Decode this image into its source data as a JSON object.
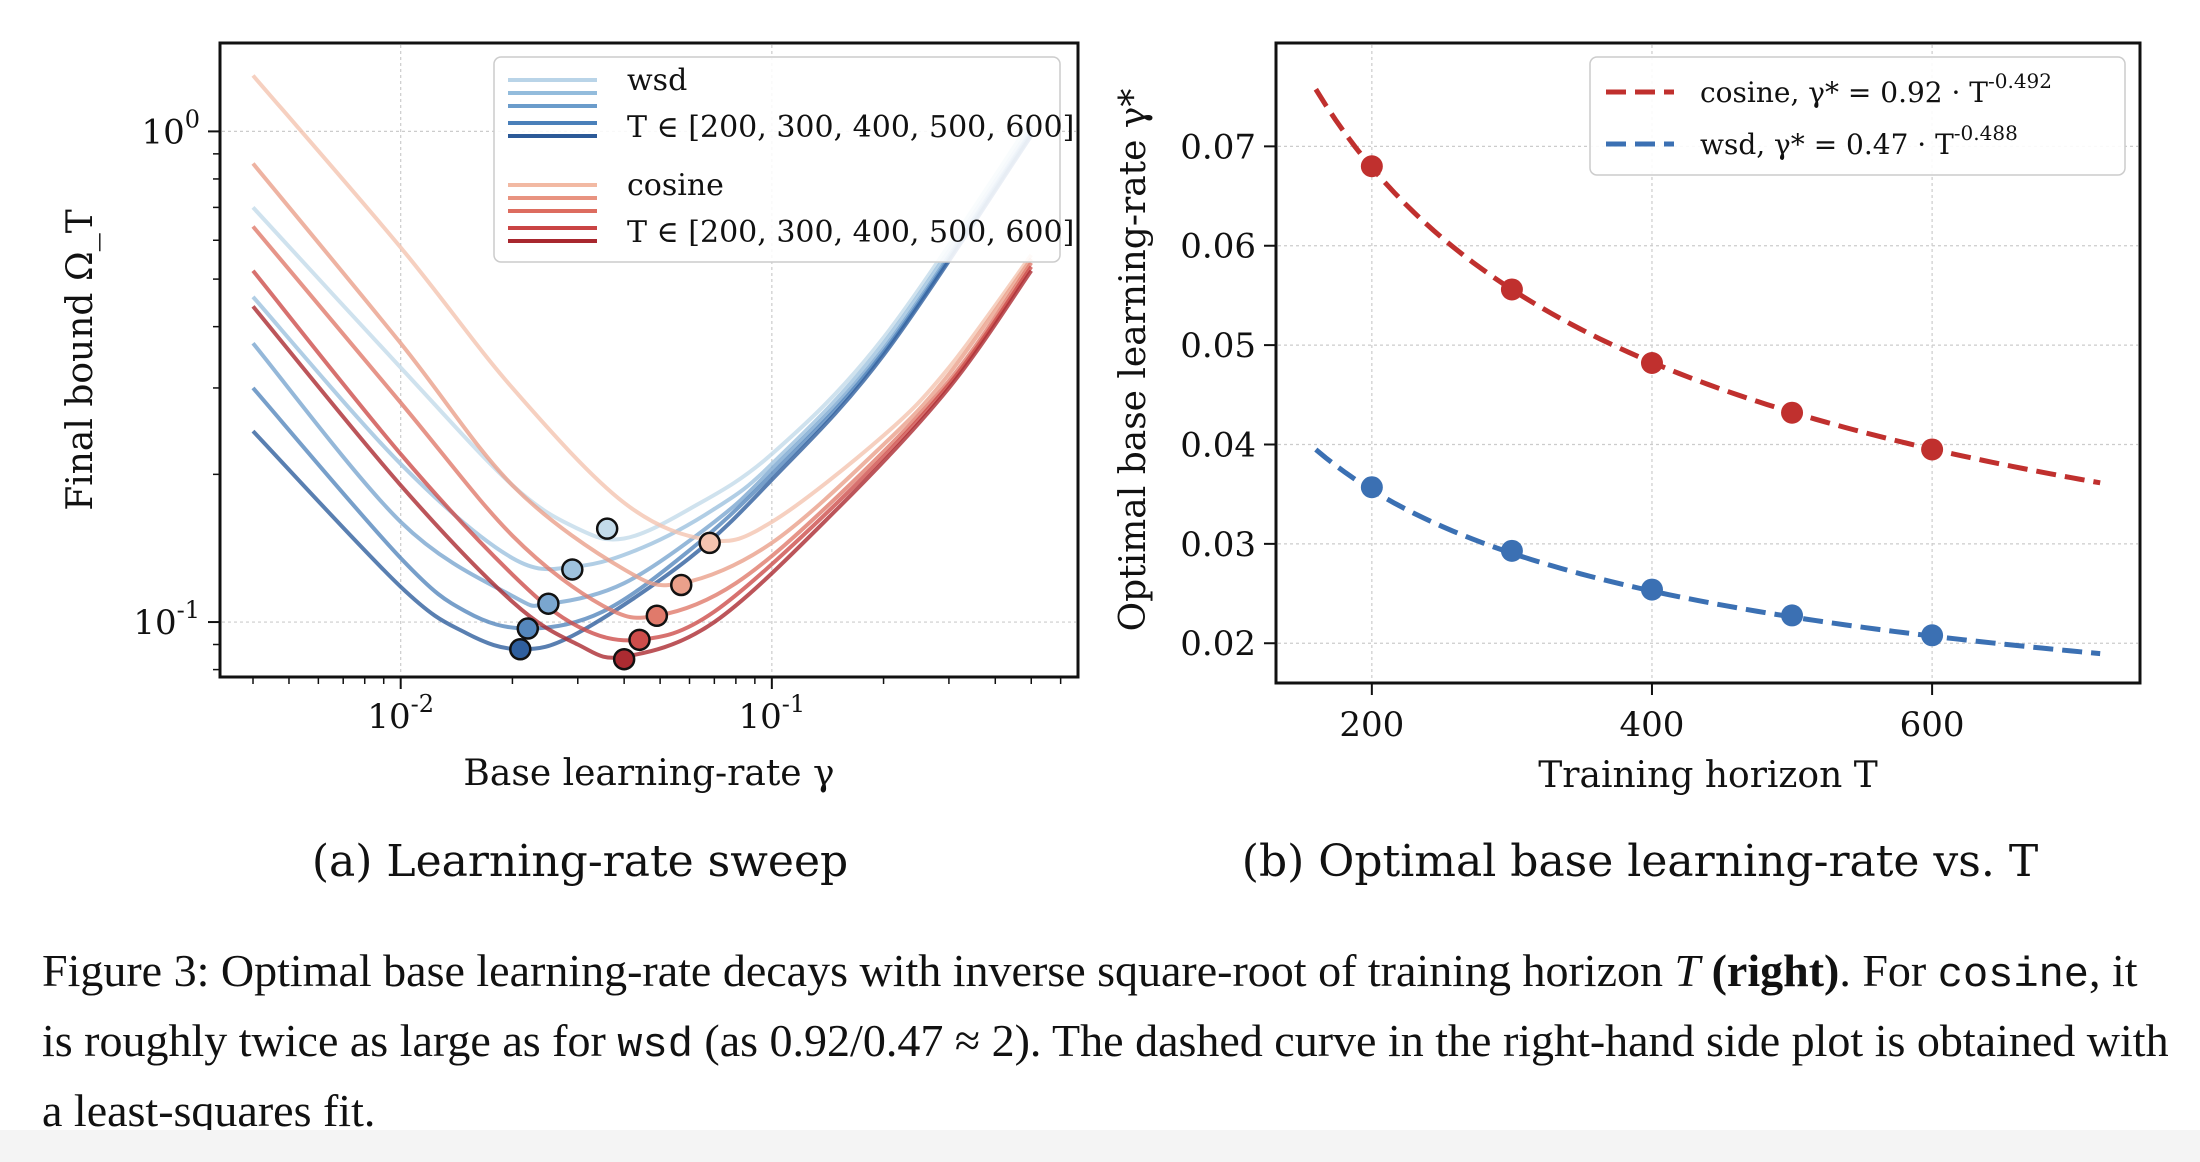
{
  "chart_data": [
    {
      "type": "line",
      "panel": "(a)",
      "subcaption": "(a) Learning-rate sweep",
      "xlabel": "Base learning-rate γ",
      "ylabel": "Final bound Ω_T",
      "xscale": "log",
      "yscale": "log",
      "xlim": [
        0.0033,
        0.66
      ],
      "ylim": [
        0.078,
        1.5
      ],
      "xticks": [
        {
          "value": 0.01,
          "label": "10^{-2}"
        },
        {
          "value": 0.1,
          "label": "10^{-1}"
        }
      ],
      "yticks": [
        {
          "value": 0.1,
          "label": "10^{-1}"
        },
        {
          "value": 1,
          "label": "10^{0}"
        }
      ],
      "grid": true,
      "legend": {
        "placement": "top-right",
        "groups": [
          {
            "name": "wsd",
            "label": "T ∈ [200, 300, 400, 500, 600]",
            "colors": [
              "#b9d4e8",
              "#93bcdc",
              "#6b9ccb",
              "#4a80ba",
              "#2c5a98"
            ]
          },
          {
            "name": "cosine",
            "label": "T ∈ [200, 300, 400, 500, 600]",
            "colors": [
              "#f2b9a3",
              "#e89380",
              "#dd6c5f",
              "#c94444",
              "#a8272e"
            ]
          }
        ]
      },
      "series": [
        {
          "name": "wsd",
          "T": 200,
          "color": "#c3dbea",
          "values": [
            [
              0.004,
              0.7
            ],
            [
              0.01,
              0.33
            ],
            [
              0.02,
              0.19
            ],
            [
              0.03,
              0.155
            ],
            [
              0.04,
              0.148
            ],
            [
              0.06,
              0.17
            ],
            [
              0.1,
              0.22
            ],
            [
              0.2,
              0.38
            ],
            [
              0.5,
              1.05
            ]
          ],
          "optimum": [
            0.036,
            0.155
          ]
        },
        {
          "name": "wsd",
          "T": 300,
          "color": "#9ec2de",
          "values": [
            [
              0.004,
              0.46
            ],
            [
              0.01,
              0.21
            ],
            [
              0.02,
              0.135
            ],
            [
              0.03,
              0.13
            ],
            [
              0.045,
              0.142
            ],
            [
              0.07,
              0.17
            ],
            [
              0.1,
              0.21
            ],
            [
              0.2,
              0.37
            ],
            [
              0.5,
              1.02
            ]
          ],
          "optimum": [
            0.029,
            0.128
          ]
        },
        {
          "name": "wsd",
          "T": 400,
          "color": "#7aa6cf",
          "values": [
            [
              0.004,
              0.37
            ],
            [
              0.01,
              0.16
            ],
            [
              0.02,
              0.113
            ],
            [
              0.025,
              0.109
            ],
            [
              0.04,
              0.12
            ],
            [
              0.07,
              0.16
            ],
            [
              0.1,
              0.205
            ],
            [
              0.2,
              0.36
            ],
            [
              0.5,
              1.0
            ]
          ],
          "optimum": [
            0.025,
            0.109
          ]
        },
        {
          "name": "wsd",
          "T": 500,
          "color": "#5587bd",
          "values": [
            [
              0.004,
              0.3
            ],
            [
              0.01,
              0.135
            ],
            [
              0.015,
              0.105
            ],
            [
              0.022,
              0.097
            ],
            [
              0.035,
              0.105
            ],
            [
              0.06,
              0.14
            ],
            [
              0.1,
              0.2
            ],
            [
              0.2,
              0.355
            ],
            [
              0.5,
              0.99
            ]
          ],
          "optimum": [
            0.022,
            0.097
          ]
        },
        {
          "name": "wsd",
          "T": 600,
          "color": "#2f5f9e",
          "values": [
            [
              0.004,
              0.245
            ],
            [
              0.01,
              0.118
            ],
            [
              0.015,
              0.095
            ],
            [
              0.021,
              0.088
            ],
            [
              0.03,
              0.095
            ],
            [
              0.06,
              0.135
            ],
            [
              0.1,
              0.195
            ],
            [
              0.2,
              0.35
            ],
            [
              0.5,
              0.98
            ]
          ],
          "optimum": [
            0.021,
            0.088
          ]
        },
        {
          "name": "cosine",
          "T": 200,
          "color": "#f4c4b0",
          "values": [
            [
              0.004,
              1.3
            ],
            [
              0.01,
              0.58
            ],
            [
              0.02,
              0.3
            ],
            [
              0.04,
              0.175
            ],
            [
              0.068,
              0.147
            ],
            [
              0.1,
              0.16
            ],
            [
              0.2,
              0.24
            ],
            [
              0.3,
              0.33
            ],
            [
              0.5,
              0.56
            ]
          ],
          "optimum": [
            0.068,
            0.145
          ]
        },
        {
          "name": "cosine",
          "T": 300,
          "color": "#eaa08b",
          "values": [
            [
              0.004,
              0.86
            ],
            [
              0.01,
              0.37
            ],
            [
              0.02,
              0.19
            ],
            [
              0.04,
              0.128
            ],
            [
              0.057,
              0.12
            ],
            [
              0.1,
              0.145
            ],
            [
              0.2,
              0.23
            ],
            [
              0.3,
              0.32
            ],
            [
              0.5,
              0.55
            ]
          ],
          "optimum": [
            0.057,
            0.119
          ]
        },
        {
          "name": "cosine",
          "T": 400,
          "color": "#e07a6b",
          "values": [
            [
              0.004,
              0.64
            ],
            [
              0.01,
              0.28
            ],
            [
              0.02,
              0.15
            ],
            [
              0.035,
              0.108
            ],
            [
              0.049,
              0.103
            ],
            [
              0.08,
              0.12
            ],
            [
              0.15,
              0.18
            ],
            [
              0.3,
              0.31
            ],
            [
              0.5,
              0.54
            ]
          ],
          "optimum": [
            0.049,
            0.103
          ]
        },
        {
          "name": "cosine",
          "T": 500,
          "color": "#cd4d4b",
          "values": [
            [
              0.004,
              0.52
            ],
            [
              0.01,
              0.22
            ],
            [
              0.02,
              0.125
            ],
            [
              0.03,
              0.098
            ],
            [
              0.044,
              0.092
            ],
            [
              0.07,
              0.105
            ],
            [
              0.15,
              0.175
            ],
            [
              0.3,
              0.305
            ],
            [
              0.5,
              0.53
            ]
          ],
          "optimum": [
            0.044,
            0.092
          ]
        },
        {
          "name": "cosine",
          "T": 600,
          "color": "#ab2b31",
          "values": [
            [
              0.004,
              0.44
            ],
            [
              0.01,
              0.19
            ],
            [
              0.02,
              0.11
            ],
            [
              0.03,
              0.09
            ],
            [
              0.04,
              0.085
            ],
            [
              0.07,
              0.1
            ],
            [
              0.15,
              0.17
            ],
            [
              0.3,
              0.3
            ],
            [
              0.5,
              0.52
            ]
          ],
          "optimum": [
            0.04,
            0.084
          ]
        }
      ]
    },
    {
      "type": "scatter",
      "panel": "(b)",
      "subcaption": "(b) Optimal base learning-rate vs. T",
      "xlabel": "Training horizon T",
      "ylabel": "Optimal base learning-rate γ*",
      "xlim": [
        133,
        747
      ],
      "ylim": [
        0.0162,
        0.0802
      ],
      "xticks": [
        200,
        400,
        600
      ],
      "yticks": [
        {
          "value": 0.02,
          "label": "0.02"
        },
        {
          "value": 0.03,
          "label": "0.03"
        },
        {
          "value": 0.04,
          "label": "0.04"
        },
        {
          "value": 0.05,
          "label": "0.05"
        },
        {
          "value": 0.06,
          "label": "0.06"
        },
        {
          "value": 0.07,
          "label": "0.07"
        }
      ],
      "grid": true,
      "legend": {
        "placement": "top-right"
      },
      "series": [
        {
          "name": "cosine",
          "label": "cosine, γ* = 0.92 · T^{-0.492}",
          "color": "#c0302e",
          "points": {
            "x": [
              200,
              300,
              400,
              500,
              600
            ],
            "y": [
              0.068,
              0.0556,
              0.0482,
              0.0432,
              0.0395
            ]
          },
          "fit": {
            "a": 0.92,
            "b": -0.492,
            "x_range": [
              160,
              720
            ]
          }
        },
        {
          "name": "wsd",
          "label": "wsd, γ* = 0.47 · T^{-0.488}",
          "color": "#3b70b3",
          "points": {
            "x": [
              200,
              300,
              400,
              500,
              600
            ],
            "y": [
              0.0357,
              0.0293,
              0.0254,
              0.0228,
              0.0208
            ]
          },
          "fit": {
            "a": 0.47,
            "b": -0.488,
            "x_range": [
              160,
              720
            ]
          }
        }
      ]
    }
  ],
  "caption": {
    "label": "Figure 3:",
    "part1": "Optimal base learning-rate decays with inverse square-root of training horizon",
    "var_T": "T",
    "bold": "(right)",
    "part2": ". For",
    "code1": "cosine",
    "part3": ", it is roughly twice as large as for",
    "code2": "wsd",
    "part4": "(as 0.92/0.47 ≈ 2). The dashed curve in the right-hand side plot is obtained with a least-squares fit."
  }
}
